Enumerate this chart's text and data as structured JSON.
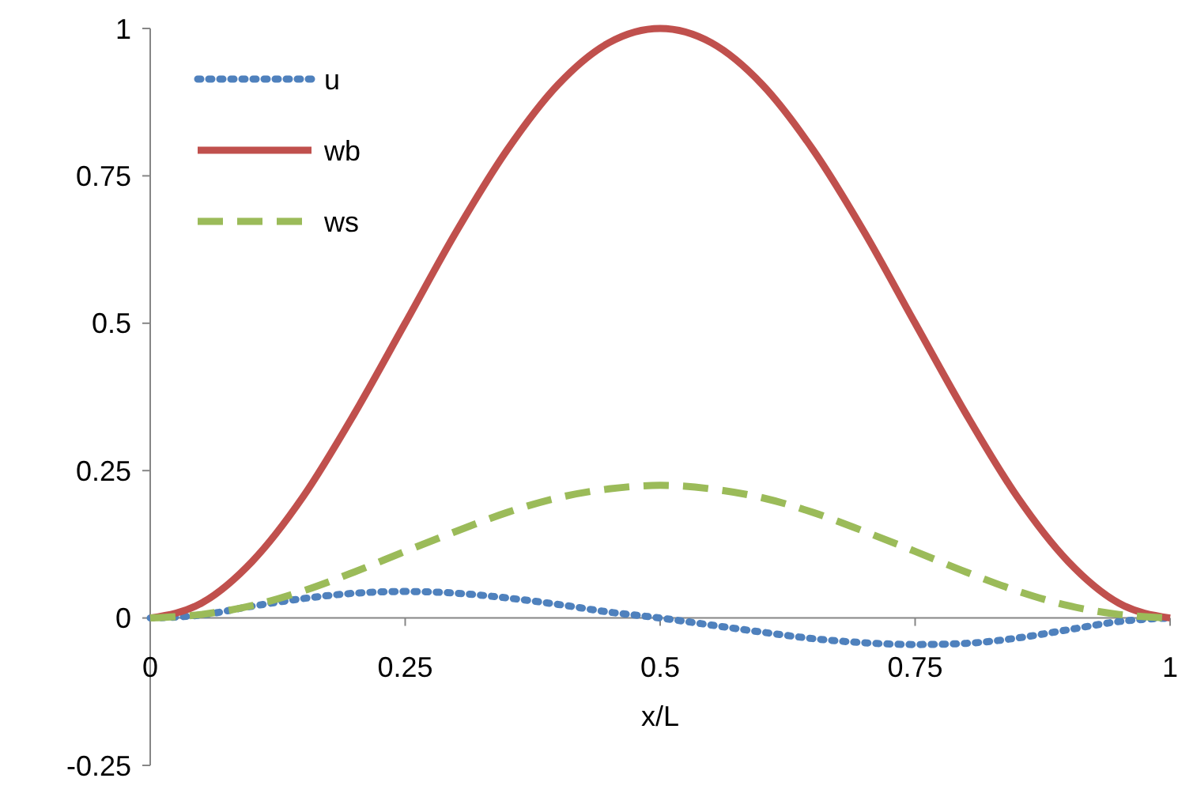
{
  "chart_data": {
    "type": "line",
    "xlabel": "x/L",
    "x": [
      0,
      0.05,
      0.1,
      0.15,
      0.2,
      0.25,
      0.3,
      0.35,
      0.4,
      0.45,
      0.5,
      0.55,
      0.6,
      0.65,
      0.7,
      0.75,
      0.8,
      0.85,
      0.9,
      0.95,
      1
    ],
    "series": [
      {
        "name": "u",
        "color": "#4f81bd",
        "line_style": "dotted",
        "values": [
          0,
          0.005,
          0.02,
          0.033,
          0.042,
          0.045,
          0.042,
          0.034,
          0.023,
          0.01,
          0,
          -0.012,
          -0.024,
          -0.035,
          -0.042,
          -0.045,
          -0.043,
          -0.034,
          -0.02,
          -0.006,
          0
        ]
      },
      {
        "name": "wb",
        "color": "#c0504d",
        "line_style": "solid",
        "values": [
          0,
          0.025,
          0.096,
          0.206,
          0.346,
          0.5,
          0.655,
          0.794,
          0.905,
          0.976,
          1,
          0.976,
          0.905,
          0.794,
          0.655,
          0.5,
          0.346,
          0.206,
          0.096,
          0.025,
          0
        ]
      },
      {
        "name": "ws",
        "color": "#9bbb59",
        "line_style": "dashed",
        "values": [
          0,
          0.006,
          0.021,
          0.046,
          0.078,
          0.113,
          0.147,
          0.179,
          0.204,
          0.219,
          0.225,
          0.219,
          0.204,
          0.179,
          0.147,
          0.113,
          0.078,
          0.046,
          0.021,
          0.006,
          0
        ]
      }
    ],
    "xlim": [
      0,
      1
    ],
    "xticks": [
      0,
      0.25,
      0.5,
      0.75,
      1
    ],
    "ylim": [
      -0.25,
      1
    ],
    "yticks": [
      -0.25,
      0,
      0.25,
      0.5,
      0.75,
      1
    ],
    "grid": false,
    "legend": "top left",
    "marker": "none"
  }
}
